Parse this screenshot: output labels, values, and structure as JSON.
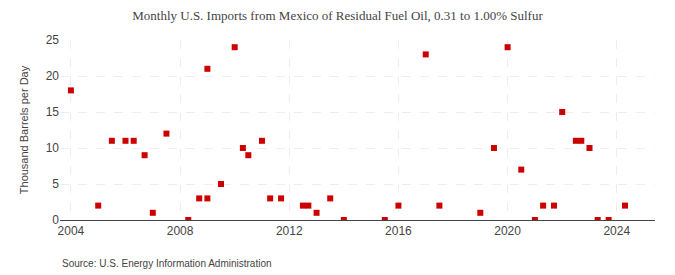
{
  "chart_data": {
    "type": "scatter",
    "title": "Monthly U.S. Imports from Mexico of Residual Fuel Oil, 0.31 to 1.00% Sulfur",
    "ylabel": "Thousand Barrels per Day",
    "annotations": [
      "Source: U.S. Energy Information Administration"
    ],
    "x": [
      2004.0,
      2005.0,
      2005.5,
      2006.0,
      2006.3,
      2006.7,
      2007.0,
      2007.5,
      2008.3,
      2008.7,
      2009.0,
      2009.0,
      2009.5,
      2010.0,
      2010.3,
      2010.5,
      2011.0,
      2011.3,
      2011.7,
      2012.5,
      2012.7,
      2013.0,
      2013.5,
      2014.0,
      2015.5,
      2016.0,
      2017.0,
      2017.5,
      2019.0,
      2019.5,
      2020.0,
      2020.5,
      2021.0,
      2021.3,
      2021.7,
      2022.0,
      2022.5,
      2022.7,
      2023.0,
      2023.3,
      2023.7,
      2024.3
    ],
    "values": [
      18,
      2,
      11,
      11,
      11,
      9,
      1,
      12,
      0,
      3,
      3,
      21,
      5,
      24,
      10,
      9,
      11,
      3,
      3,
      2,
      2,
      1,
      3,
      0,
      0,
      2,
      23,
      2,
      1,
      10,
      24,
      7,
      0,
      2,
      2,
      15,
      11,
      11,
      10,
      0,
      0,
      2
    ],
    "color": "#cc0000",
    "marker": "square",
    "xlim": [
      2003.6,
      2025.4
    ],
    "xticks": [
      2004,
      2008,
      2012,
      2016,
      2020,
      2024
    ],
    "ylim": [
      0,
      25
    ],
    "yticks": [
      0,
      5,
      10,
      15,
      20,
      25
    ],
    "grid": true
  }
}
